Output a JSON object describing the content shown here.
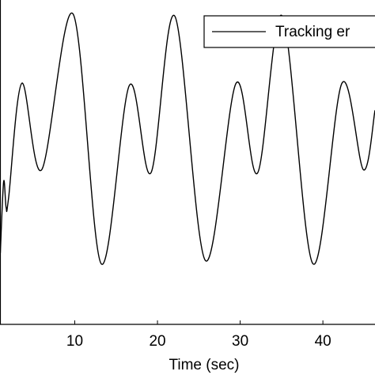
{
  "chart_data": {
    "type": "line",
    "xlabel": "Time (sec)",
    "xlim": [
      0.96,
      46.3
    ],
    "xticks": [
      10,
      20,
      30,
      40
    ],
    "ylim": [
      -1.5,
      1.5
    ],
    "series": [
      {
        "name": "Tracking er",
        "color": "#000000",
        "x": [
          1.0,
          1.4,
          1.7,
          2.0,
          3.6,
          6.0,
          9.8,
          13.2,
          16.6,
          19.2,
          22.1,
          25.8,
          29.5,
          32.1,
          35.1,
          38.8,
          42.3,
          44.9,
          46.3
        ],
        "values": [
          -0.84,
          -0.18,
          -0.42,
          -0.33,
          0.73,
          -0.07,
          1.37,
          -0.94,
          0.71,
          -0.1,
          1.35,
          -0.91,
          0.73,
          -0.1,
          1.35,
          -0.94,
          0.73,
          -0.07,
          0.48
        ]
      }
    ]
  }
}
